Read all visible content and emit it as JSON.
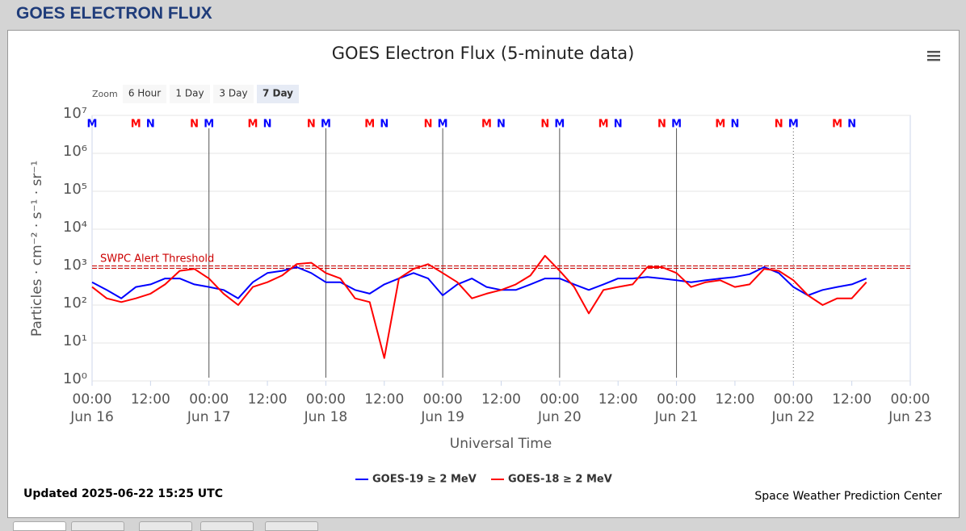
{
  "header": "GOES ELECTRON FLUX",
  "zoom": {
    "label": "Zoom",
    "buttons": [
      "6 Hour",
      "1 Day",
      "3 Day",
      "7 Day"
    ],
    "selected": 3
  },
  "updated": "Updated 2025-06-22 15:25 UTC",
  "credit": "Space Weather Prediction Center",
  "chart_data": {
    "type": "line",
    "title": "GOES Electron Flux (5-minute data)",
    "x_label": "Universal Time",
    "y_label": "Particles · cm⁻² · s⁻¹ · sr⁻¹",
    "log_y": true,
    "grid": true,
    "ylim": [
      1,
      10000000
    ],
    "yticks": [
      {
        "value": 1,
        "label": "10⁰"
      },
      {
        "value": 10,
        "label": "10¹"
      },
      {
        "value": 100,
        "label": "10²"
      },
      {
        "value": 1000,
        "label": "10³"
      },
      {
        "value": 10000,
        "label": "10⁴"
      },
      {
        "value": 100000,
        "label": "10⁵"
      },
      {
        "value": 1000000,
        "label": "10⁶"
      },
      {
        "value": 10000000,
        "label": "10⁷"
      }
    ],
    "xlim": [
      "Jun 16 00:00",
      "Jun 23 00:00"
    ],
    "xticks": [
      {
        "value": "Jun 16 00:00",
        "label": "00:00",
        "date": "Jun 16"
      },
      {
        "value": "Jun 16 12:00",
        "label": "12:00"
      },
      {
        "value": "Jun 17 00:00",
        "label": "00:00",
        "date": "Jun 17"
      },
      {
        "value": "Jun 17 12:00",
        "label": "12:00"
      },
      {
        "value": "Jun 18 00:00",
        "label": "00:00",
        "date": "Jun 18"
      },
      {
        "value": "Jun 18 12:00",
        "label": "12:00"
      },
      {
        "value": "Jun 19 00:00",
        "label": "00:00",
        "date": "Jun 19"
      },
      {
        "value": "Jun 19 12:00",
        "label": "12:00"
      },
      {
        "value": "Jun 20 00:00",
        "label": "00:00",
        "date": "Jun 20"
      },
      {
        "value": "Jun 20 12:00",
        "label": "12:00"
      },
      {
        "value": "Jun 21 00:00",
        "label": "00:00",
        "date": "Jun 21"
      },
      {
        "value": "Jun 21 12:00",
        "label": "12:00"
      },
      {
        "value": "Jun 22 00:00",
        "label": "00:00",
        "date": "Jun 22"
      },
      {
        "value": "Jun 22 12:00",
        "label": "12:00"
      },
      {
        "value": "Jun 23 00:00",
        "label": "00:00",
        "date": "Jun 23"
      }
    ],
    "x": [
      "Jun 16 00:00",
      "Jun 16 03:00",
      "Jun 16 06:00",
      "Jun 16 09:00",
      "Jun 16 12:00",
      "Jun 16 15:00",
      "Jun 16 18:00",
      "Jun 16 21:00",
      "Jun 17 00:00",
      "Jun 17 03:00",
      "Jun 17 06:00",
      "Jun 17 09:00",
      "Jun 17 12:00",
      "Jun 17 15:00",
      "Jun 17 18:00",
      "Jun 17 21:00",
      "Jun 18 00:00",
      "Jun 18 03:00",
      "Jun 18 06:00",
      "Jun 18 09:00",
      "Jun 18 12:00",
      "Jun 18 15:00",
      "Jun 18 18:00",
      "Jun 18 21:00",
      "Jun 19 00:00",
      "Jun 19 03:00",
      "Jun 19 06:00",
      "Jun 19 09:00",
      "Jun 19 12:00",
      "Jun 19 15:00",
      "Jun 19 18:00",
      "Jun 19 21:00",
      "Jun 20 00:00",
      "Jun 20 03:00",
      "Jun 20 06:00",
      "Jun 20 09:00",
      "Jun 20 12:00",
      "Jun 20 15:00",
      "Jun 20 18:00",
      "Jun 20 21:00",
      "Jun 21 00:00",
      "Jun 21 03:00",
      "Jun 21 06:00",
      "Jun 21 09:00",
      "Jun 21 12:00",
      "Jun 21 15:00",
      "Jun 21 18:00",
      "Jun 21 21:00",
      "Jun 22 00:00",
      "Jun 22 03:00",
      "Jun 22 06:00",
      "Jun 22 09:00",
      "Jun 22 12:00",
      "Jun 22 15:00"
    ],
    "series": [
      {
        "name": "GOES-19 ≥ 2 MeV",
        "color": "#0000ff",
        "values": [
          400,
          250,
          150,
          300,
          350,
          500,
          500,
          350,
          300,
          250,
          150,
          400,
          700,
          800,
          1000,
          700,
          400,
          400,
          250,
          200,
          350,
          500,
          700,
          500,
          180,
          350,
          500,
          300,
          250,
          250,
          350,
          500,
          500,
          350,
          250,
          350,
          500,
          500,
          550,
          500,
          450,
          400,
          450,
          500,
          550,
          650,
          1000,
          700,
          300,
          180,
          250,
          300,
          350,
          500
        ]
      },
      {
        "name": "GOES-18 ≥ 2 MeV",
        "color": "#ff0000",
        "values": [
          300,
          150,
          120,
          150,
          200,
          350,
          800,
          900,
          500,
          200,
          100,
          300,
          400,
          600,
          1200,
          1300,
          700,
          500,
          150,
          120,
          4,
          500,
          900,
          1200,
          700,
          400,
          150,
          200,
          250,
          350,
          600,
          2000,
          800,
          300,
          60,
          250,
          300,
          350,
          1000,
          1000,
          700,
          300,
          400,
          450,
          300,
          350,
          900,
          800,
          450,
          180,
          100,
          150,
          150,
          400
        ]
      }
    ],
    "threshold": {
      "value": 1000,
      "label": "SWPC Alert Threshold",
      "color": "#cc0000"
    },
    "annotations": [
      {
        "x": "Jun 16 00:00",
        "text": "M",
        "color": "#0000ff"
      },
      {
        "x": "Jun 16 09:00",
        "text": "M",
        "color": "#ff0000"
      },
      {
        "x": "Jun 16 12:00",
        "text": "N",
        "color": "#0000ff"
      },
      {
        "x": "Jun 16 21:00",
        "text": "N",
        "color": "#ff0000"
      },
      {
        "x": "Jun 17 00:00",
        "text": "M",
        "color": "#0000ff"
      },
      {
        "x": "Jun 17 09:00",
        "text": "M",
        "color": "#ff0000"
      },
      {
        "x": "Jun 17 12:00",
        "text": "N",
        "color": "#0000ff"
      },
      {
        "x": "Jun 17 21:00",
        "text": "N",
        "color": "#ff0000"
      },
      {
        "x": "Jun 18 00:00",
        "text": "M",
        "color": "#0000ff"
      },
      {
        "x": "Jun 18 09:00",
        "text": "M",
        "color": "#ff0000"
      },
      {
        "x": "Jun 18 12:00",
        "text": "N",
        "color": "#0000ff"
      },
      {
        "x": "Jun 18 21:00",
        "text": "N",
        "color": "#ff0000"
      },
      {
        "x": "Jun 19 00:00",
        "text": "M",
        "color": "#0000ff"
      },
      {
        "x": "Jun 19 09:00",
        "text": "M",
        "color": "#ff0000"
      },
      {
        "x": "Jun 19 12:00",
        "text": "N",
        "color": "#0000ff"
      },
      {
        "x": "Jun 19 21:00",
        "text": "N",
        "color": "#ff0000"
      },
      {
        "x": "Jun 20 00:00",
        "text": "M",
        "color": "#0000ff"
      },
      {
        "x": "Jun 20 09:00",
        "text": "M",
        "color": "#ff0000"
      },
      {
        "x": "Jun 20 12:00",
        "text": "N",
        "color": "#0000ff"
      },
      {
        "x": "Jun 20 21:00",
        "text": "N",
        "color": "#ff0000"
      },
      {
        "x": "Jun 21 00:00",
        "text": "M",
        "color": "#0000ff"
      },
      {
        "x": "Jun 21 09:00",
        "text": "M",
        "color": "#ff0000"
      },
      {
        "x": "Jun 21 12:00",
        "text": "N",
        "color": "#0000ff"
      },
      {
        "x": "Jun 21 21:00",
        "text": "N",
        "color": "#ff0000"
      },
      {
        "x": "Jun 22 00:00",
        "text": "M",
        "color": "#0000ff"
      },
      {
        "x": "Jun 22 09:00",
        "text": "M",
        "color": "#ff0000"
      },
      {
        "x": "Jun 22 12:00",
        "text": "N",
        "color": "#0000ff"
      }
    ]
  }
}
